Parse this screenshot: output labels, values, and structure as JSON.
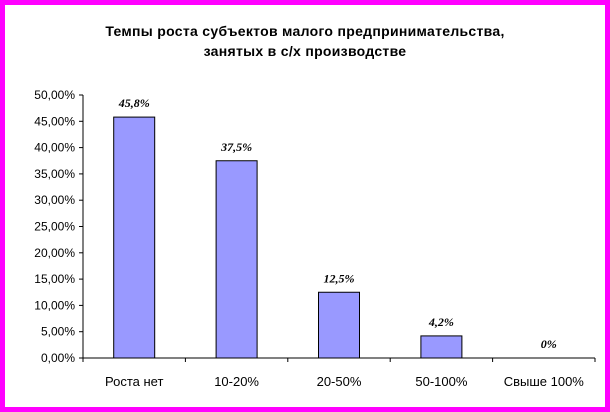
{
  "chart_data": {
    "type": "bar",
    "title_lines": [
      "Темпы роста субъектов малого предпринимательства,",
      "занятых в с/х производстве"
    ],
    "categories": [
      "Роста нет",
      "10-20%",
      "20-50%",
      "50-100%",
      "Свыше 100%"
    ],
    "values": [
      45.8,
      37.5,
      12.5,
      4.2,
      0
    ],
    "data_labels": [
      "45,8%",
      "37,5%",
      "12,5%",
      "4,2%",
      "0%"
    ],
    "y_ticks": [
      "0,00%",
      "5,00%",
      "10,00%",
      "15,00%",
      "20,00%",
      "25,00%",
      "30,00%",
      "35,00%",
      "40,00%",
      "45,00%",
      "50,00%"
    ],
    "ylim": [
      0,
      50
    ],
    "grid": false,
    "legend": "none",
    "colors": {
      "bar_fill": "#9999ff",
      "bar_stroke": "#000000",
      "frame": "#ff00ff"
    }
  }
}
